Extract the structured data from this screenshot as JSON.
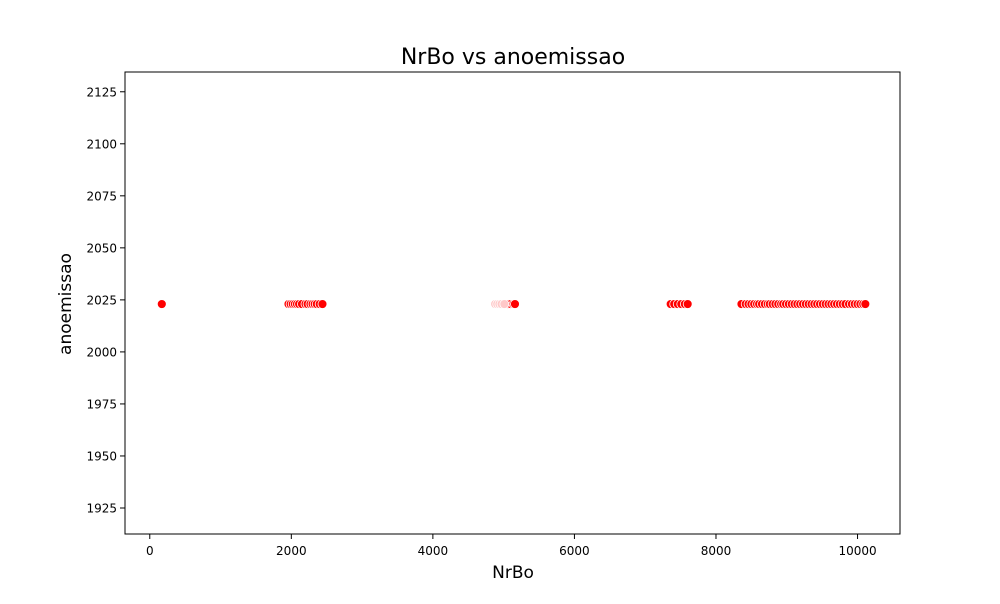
{
  "chart_data": {
    "type": "scatter",
    "title": "NrBo vs anoemissao",
    "xlabel": "NrBo",
    "ylabel": "anoemissao",
    "xlim": [
      -350,
      10600
    ],
    "ylim": [
      1912.5,
      2134.5
    ],
    "xticks": [
      0,
      2000,
      4000,
      6000,
      8000,
      10000
    ],
    "yticks": [
      1925,
      1950,
      1975,
      2000,
      2025,
      2050,
      2075,
      2100,
      2125
    ],
    "grid": false,
    "legend": null,
    "colors": {
      "marker": "#ff0000",
      "marker_faded": "#ffc8c8",
      "marker_edge": "#ffffff",
      "axes": "#000000"
    },
    "series": [
      {
        "color": "#ff0000",
        "x": [
          170,
          1960,
          1990,
          2020,
          2050,
          2080,
          2110,
          2150,
          2200,
          2230,
          2270,
          2300,
          2330,
          2360,
          2400,
          2440,
          4990,
          5020,
          5060,
          5100,
          5140,
          5160,
          7360,
          7410,
          7460,
          7510,
          7560,
          7600,
          8360,
          8420,
          8460,
          8500,
          8540,
          8580,
          8610,
          8650,
          8690,
          8730,
          8760,
          8800,
          8840,
          8880,
          8920,
          8950,
          8990,
          9030,
          9070,
          9110,
          9150,
          9190,
          9230,
          9270,
          9310,
          9350,
          9390,
          9430,
          9470,
          9510,
          9550,
          9590,
          9630,
          9670,
          9710,
          9750,
          9790,
          9830,
          9880,
          9920,
          9960,
          10000,
          10040,
          10080,
          10110
        ],
        "y": [
          2023,
          2023,
          2023,
          2023,
          2023,
          2023,
          2023,
          2023,
          2023,
          2023,
          2023,
          2023,
          2023,
          2023,
          2023,
          2023,
          2023,
          2023,
          2023,
          2023,
          2023,
          2023,
          2023,
          2023,
          2023,
          2023,
          2023,
          2023,
          2023,
          2023,
          2023,
          2023,
          2023,
          2023,
          2023,
          2023,
          2023,
          2023,
          2023,
          2023,
          2023,
          2023,
          2023,
          2023,
          2023,
          2023,
          2023,
          2023,
          2023,
          2023,
          2023,
          2023,
          2023,
          2023,
          2023,
          2023,
          2023,
          2023,
          2023,
          2023,
          2023,
          2023,
          2023,
          2023,
          2023,
          2023,
          2023,
          2023,
          2023,
          2023,
          2023,
          2023,
          2023
        ]
      },
      {
        "color": "#ffc8c8",
        "x": [
          4880,
          4910,
          4940,
          4970,
          5010
        ],
        "y": [
          2023,
          2023,
          2023,
          2023,
          2023
        ]
      }
    ]
  }
}
